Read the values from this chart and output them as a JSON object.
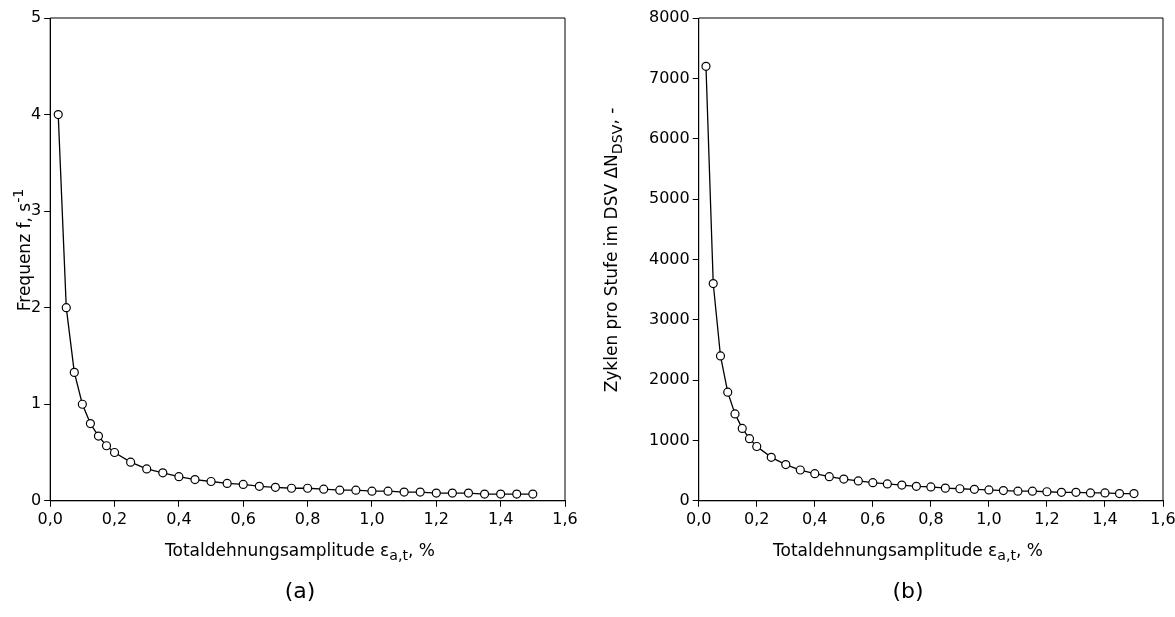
{
  "chart_data": [
    {
      "type": "line",
      "xlabel": "Totaldehnungsamplitude ε$_{a,t}$, %",
      "ylabel": "Frequenz f, s$^{-1}$",
      "annotations": [
        "(a)"
      ],
      "marker": "circle",
      "line_style": "solid",
      "grid": false,
      "legend": false,
      "x": [
        0.025,
        0.05,
        0.075,
        0.1,
        0.125,
        0.15,
        0.175,
        0.2,
        0.25,
        0.3,
        0.35,
        0.4,
        0.45,
        0.5,
        0.55,
        0.6,
        0.65,
        0.7,
        0.75,
        0.8,
        0.85,
        0.9,
        0.95,
        1.0,
        1.05,
        1.1,
        1.15,
        1.2,
        1.25,
        1.3,
        1.35,
        1.4,
        1.45,
        1.5
      ],
      "series": [
        {
          "color": "#000000",
          "values": [
            4,
            2,
            1.33,
            1,
            0.8,
            0.67,
            0.57,
            0.5,
            0.4,
            0.33,
            0.29,
            0.25,
            0.22,
            0.2,
            0.18,
            0.17,
            0.15,
            0.14,
            0.13,
            0.13,
            0.12,
            0.11,
            0.11,
            0.1,
            0.1,
            0.09,
            0.09,
            0.08,
            0.08,
            0.08,
            0.07,
            0.07,
            0.07,
            0.07
          ]
        }
      ],
      "xlim": [
        0,
        1.6
      ],
      "xticks": [
        {
          "value": 0,
          "label": "0,0"
        },
        {
          "value": 0.2,
          "label": "0,2"
        },
        {
          "value": 0.4,
          "label": "0,4"
        },
        {
          "value": 0.6,
          "label": "0,6"
        },
        {
          "value": 0.8,
          "label": "0,8"
        },
        {
          "value": 1,
          "label": "1,0"
        },
        {
          "value": 1.2,
          "label": "1,2"
        },
        {
          "value": 1.4,
          "label": "1,4"
        },
        {
          "value": 1.6,
          "label": "1,6"
        }
      ],
      "ylim": [
        0,
        5
      ],
      "yticks": [
        0,
        1,
        2,
        3,
        4,
        5
      ]
    },
    {
      "type": "line",
      "xlabel": "Totaldehnungsamplitude ε$_{a,t}$, %",
      "ylabel": "Zyklen pro Stufe im DSV ΔN$_{DSV}$, -",
      "annotations": [
        "(b)"
      ],
      "marker": "circle",
      "line_style": "solid",
      "grid": false,
      "legend": false,
      "x": [
        0.025,
        0.05,
        0.075,
        0.1,
        0.125,
        0.15,
        0.175,
        0.2,
        0.25,
        0.3,
        0.35,
        0.4,
        0.45,
        0.5,
        0.55,
        0.6,
        0.65,
        0.7,
        0.75,
        0.8,
        0.85,
        0.9,
        0.95,
        1.0,
        1.05,
        1.1,
        1.15,
        1.2,
        1.25,
        1.3,
        1.35,
        1.4,
        1.45,
        1.5
      ],
      "series": [
        {
          "color": "#000000",
          "values": [
            7200,
            3600,
            2400,
            1800,
            1440,
            1200,
            1030,
            900,
            720,
            600,
            510,
            450,
            400,
            360,
            330,
            300,
            280,
            260,
            240,
            230,
            210,
            200,
            190,
            180,
            170,
            160,
            160,
            150,
            140,
            140,
            130,
            130,
            120,
            120
          ]
        }
      ],
      "xlim": [
        0,
        1.6
      ],
      "xticks": [
        {
          "value": 0,
          "label": "0,0"
        },
        {
          "value": 0.2,
          "label": "0,2"
        },
        {
          "value": 0.4,
          "label": "0,4"
        },
        {
          "value": 0.6,
          "label": "0,6"
        },
        {
          "value": 0.8,
          "label": "0,8"
        },
        {
          "value": 1,
          "label": "1,0"
        },
        {
          "value": 1.2,
          "label": "1,2"
        },
        {
          "value": 1.4,
          "label": "1,4"
        },
        {
          "value": 1.6,
          "label": "1,6"
        }
      ],
      "ylim": [
        0,
        8000
      ],
      "yticks": [
        0,
        1000,
        2000,
        3000,
        4000,
        5000,
        6000,
        7000,
        8000
      ]
    }
  ]
}
